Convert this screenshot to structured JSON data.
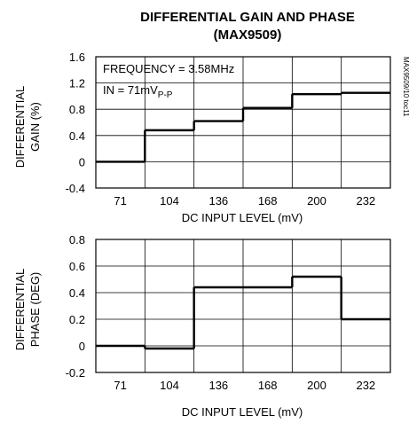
{
  "title_line1": "DIFFERENTIAL GAIN AND PHASE",
  "title_line2": "(MAX9509)",
  "side_label": "MAX9509/10 toc11",
  "chart_data": [
    {
      "type": "line",
      "step": true,
      "title": "DIFFERENTIAL GAIN AND PHASE (MAX9509)",
      "ylabel": [
        "DIFFERENTIAL",
        "GAIN (%)"
      ],
      "xlabel": "DC INPUT LEVEL (mV)",
      "categories": [
        "71",
        "104",
        "136",
        "168",
        "200",
        "232"
      ],
      "yticks": [
        "1.6",
        "1.2",
        "0.8",
        "0.4",
        "0",
        "-0.4"
      ],
      "ylim": [
        -0.4,
        1.6
      ],
      "values": [
        0.0,
        0.48,
        0.62,
        0.82,
        1.03,
        1.05
      ],
      "grid": true,
      "annotations": {
        "frequency": "FREQUENCY = 3.58MHz",
        "input_main": "IN = 71mV",
        "input_sub": "P-P"
      }
    },
    {
      "type": "line",
      "step": true,
      "ylabel": [
        "DIFFERENTIAL",
        "PHASE (DEG)"
      ],
      "xlabel": "DC INPUT LEVEL (mV)",
      "categories": [
        "71",
        "104",
        "136",
        "168",
        "200",
        "232"
      ],
      "yticks": [
        "0.8",
        "0.6",
        "0.4",
        "0.2",
        "0",
        "-0.2"
      ],
      "ylim": [
        -0.2,
        0.8
      ],
      "values": [
        0.0,
        -0.02,
        0.44,
        0.44,
        0.52,
        0.2
      ],
      "grid": true
    }
  ]
}
